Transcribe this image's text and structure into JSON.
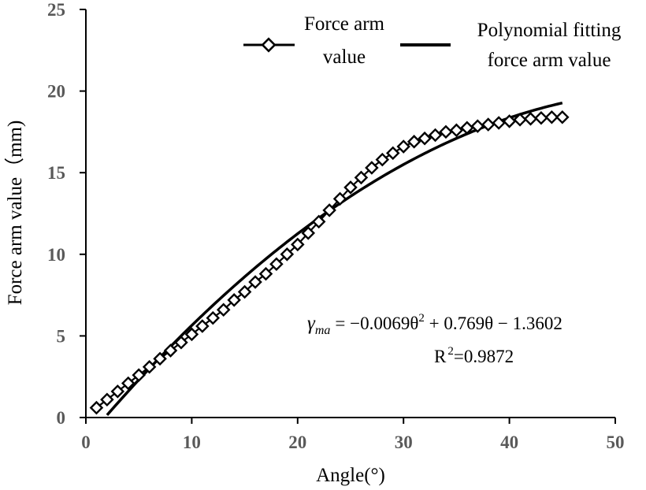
{
  "chart_data": {
    "type": "line",
    "xlabel": "Angle(°)",
    "ylabel": "Force arm value（mm)",
    "xlim": [
      0,
      50
    ],
    "ylim": [
      0,
      25
    ],
    "xticks": [
      "0",
      "10",
      "20",
      "30",
      "40",
      "50"
    ],
    "yticks": [
      "0",
      "5",
      "10",
      "15",
      "20",
      "25"
    ],
    "grid": false,
    "legend_position": "top-right",
    "series": [
      {
        "name_lines": [
          "Force arm",
          "value"
        ],
        "style": "line-with-diamond-markers",
        "x": [
          1,
          2,
          3,
          4,
          5,
          6,
          7,
          8,
          9,
          10,
          11,
          12,
          13,
          14,
          15,
          16,
          17,
          18,
          19,
          20,
          21,
          22,
          23,
          24,
          25,
          26,
          27,
          28,
          29,
          30,
          31,
          32,
          33,
          34,
          35,
          36,
          37,
          38,
          39,
          40,
          41,
          42,
          43,
          44,
          45
        ],
        "y": [
          0.6,
          1.1,
          1.6,
          2.1,
          2.6,
          3.1,
          3.6,
          4.1,
          4.6,
          5.1,
          5.6,
          6.1,
          6.6,
          7.2,
          7.7,
          8.3,
          8.8,
          9.4,
          10.0,
          10.6,
          11.3,
          12.0,
          12.7,
          13.4,
          14.1,
          14.7,
          15.3,
          15.8,
          16.2,
          16.6,
          16.9,
          17.1,
          17.3,
          17.5,
          17.6,
          17.75,
          17.85,
          17.95,
          18.05,
          18.15,
          18.25,
          18.3,
          18.35,
          18.4,
          18.4
        ],
        "color": "#000000"
      },
      {
        "name_lines": [
          "Polynomial fitting",
          "force arm value"
        ],
        "style": "solid-line",
        "x_range": [
          2,
          45
        ],
        "coefficients": {
          "a": -0.0069,
          "b": 0.769,
          "c": -1.3602
        },
        "color": "#000000"
      }
    ],
    "annotations": {
      "equation": {
        "gamma": "γ",
        "subscript": "ma",
        "body": "= −0.0069θ",
        "exp": "2",
        "tail": " + 0.769θ − 1.3602"
      },
      "r2": {
        "label": "R",
        "exp": "2",
        "value": "=0.9872"
      }
    }
  }
}
